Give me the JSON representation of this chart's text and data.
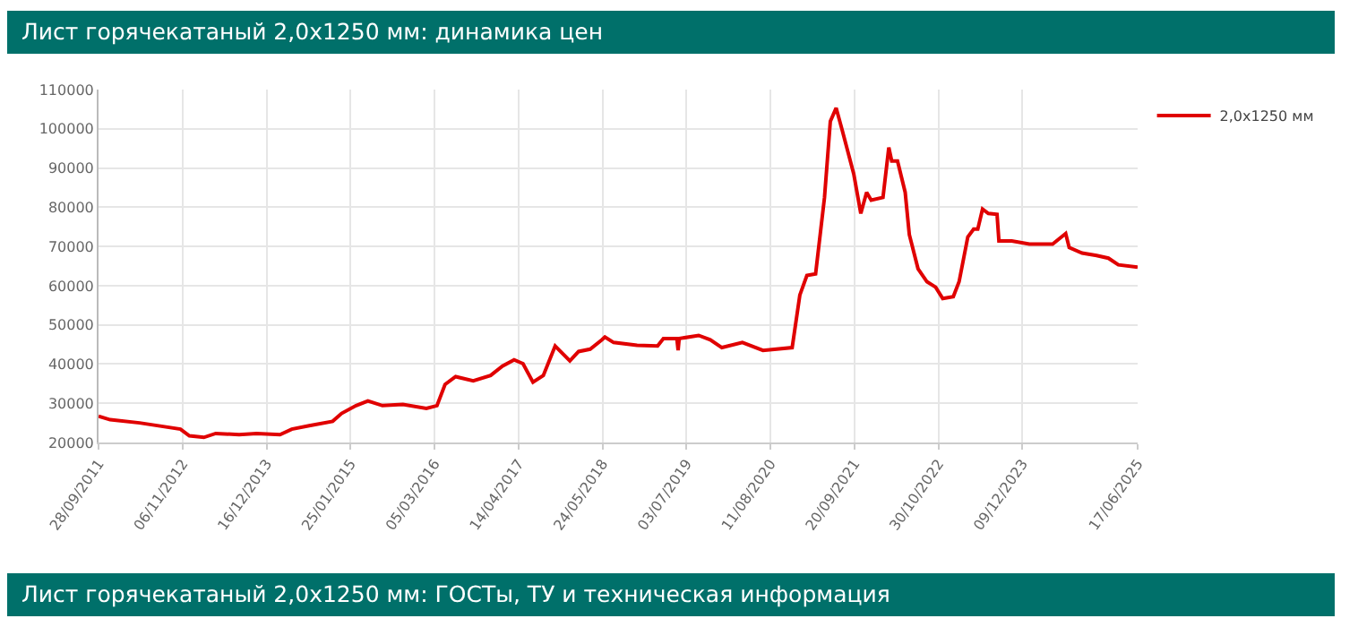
{
  "chart_data": {
    "type": "line",
    "title": "Лист горячекатаный 2,0x1250 мм: динамика цен",
    "annotations": [
      "Лист горячекатаный 2,0x1250 мм: ГОСТы, ТУ и техническая информация"
    ],
    "series": [
      {
        "name": "2,0x1250 мм",
        "color": "#e00000",
        "x": [
          "2011-09-28",
          "2011-11-23",
          "2012-04-13",
          "2012-10-27",
          "2012-12-09",
          "2013-02-17",
          "2013-04-15",
          "2013-08-06",
          "2013-10-29",
          "2014-02-19",
          "2014-04-17",
          "2014-07-10",
          "2014-10-31",
          "2014-12-13",
          "2015-02-21",
          "2015-04-19",
          "2015-06-28",
          "2015-10-05",
          "2016-01-26",
          "2016-03-17",
          "2016-04-25",
          "2016-06-15",
          "2016-09-08",
          "2016-12-01",
          "2017-01-27",
          "2017-03-24",
          "2017-05-06",
          "2017-06-23",
          "2017-08-12",
          "2017-10-08",
          "2017-12-18",
          "2018-01-29",
          "2018-03-26",
          "2018-05-22",
          "2018-06-05",
          "2018-07-17",
          "2018-11-07",
          "2019-02-14",
          "2019-03-14",
          "2019-05-18",
          "2019-05-24",
          "2019-05-29",
          "2019-08-31",
          "2019-10-26",
          "2019-12-21",
          "2020-03-29",
          "2020-07-06",
          "2020-11-24",
          "2020-12-31",
          "2021-02-03",
          "2021-03-17",
          "2021-04-29",
          "2021-05-27",
          "2021-06-24",
          "2021-07-22",
          "2021-09-17",
          "2021-10-21",
          "2021-11-18",
          "2021-12-10",
          "2022-02-05",
          "2022-03-05",
          "2022-03-19",
          "2022-04-16",
          "2022-05-23",
          "2022-06-12",
          "2022-07-24",
          "2022-09-05",
          "2022-10-17",
          "2022-11-20",
          "2023-01-10",
          "2023-02-07",
          "2023-03-21",
          "2023-04-18",
          "2023-05-08",
          "2023-05-31",
          "2023-06-28",
          "2023-08-09",
          "2023-08-18",
          "2023-10-19",
          "2024-01-12",
          "2024-05-03",
          "2024-07-05",
          "2024-07-22",
          "2024-09-22",
          "2024-12-01",
          "2025-01-27",
          "2025-03-16",
          "2025-06-17"
        ],
        "values": [
          26700,
          25800,
          25000,
          23400,
          21700,
          21300,
          22300,
          22000,
          22300,
          22000,
          23400,
          24300,
          25400,
          27400,
          29400,
          30600,
          29400,
          29700,
          28700,
          29400,
          34800,
          36800,
          35700,
          37100,
          39500,
          41100,
          40100,
          35400,
          37100,
          44600,
          40800,
          43200,
          43800,
          46200,
          46900,
          45500,
          44800,
          44600,
          46500,
          46500,
          43500,
          46500,
          47300,
          46200,
          44200,
          45500,
          43500,
          44200,
          57600,
          62600,
          63000,
          82500,
          101900,
          105300,
          99900,
          88500,
          78400,
          83800,
          81800,
          82500,
          95200,
          91800,
          91800,
          83800,
          73000,
          64300,
          61000,
          59600,
          56700,
          57200,
          61000,
          72400,
          74400,
          74400,
          79500,
          78400,
          78200,
          71400,
          71400,
          70600,
          70600,
          73300,
          69700,
          68300,
          67700,
          67000,
          65300,
          64700
        ]
      }
    ],
    "xlim": [
      "2011-09-28",
      "2025-06-17"
    ],
    "xticks": [
      {
        "value": "2011-09-28",
        "label": "28/09/2011"
      },
      {
        "value": "2012-11-06",
        "label": "06/11/2012"
      },
      {
        "value": "2013-12-16",
        "label": "16/12/2013"
      },
      {
        "value": "2015-01-25",
        "label": "25/01/2015"
      },
      {
        "value": "2016-03-05",
        "label": "05/03/2016"
      },
      {
        "value": "2017-04-14",
        "label": "14/04/2017"
      },
      {
        "value": "2018-05-24",
        "label": "24/05/2018"
      },
      {
        "value": "2019-07-03",
        "label": "03/07/2019"
      },
      {
        "value": "2020-08-11",
        "label": "11/08/2020"
      },
      {
        "value": "2021-09-20",
        "label": "20/09/2021"
      },
      {
        "value": "2022-10-30",
        "label": "30/10/2022"
      },
      {
        "value": "2023-12-09",
        "label": "09/12/2023"
      },
      {
        "value": "2025-06-17",
        "label": "17/06/2025"
      }
    ],
    "ylim": [
      20000,
      110000
    ],
    "yticks": [
      20000,
      30000,
      40000,
      50000,
      60000,
      70000,
      80000,
      90000,
      100000,
      110000
    ],
    "grid": true,
    "legend": "top right",
    "marker": "none",
    "line_style": "solid"
  }
}
